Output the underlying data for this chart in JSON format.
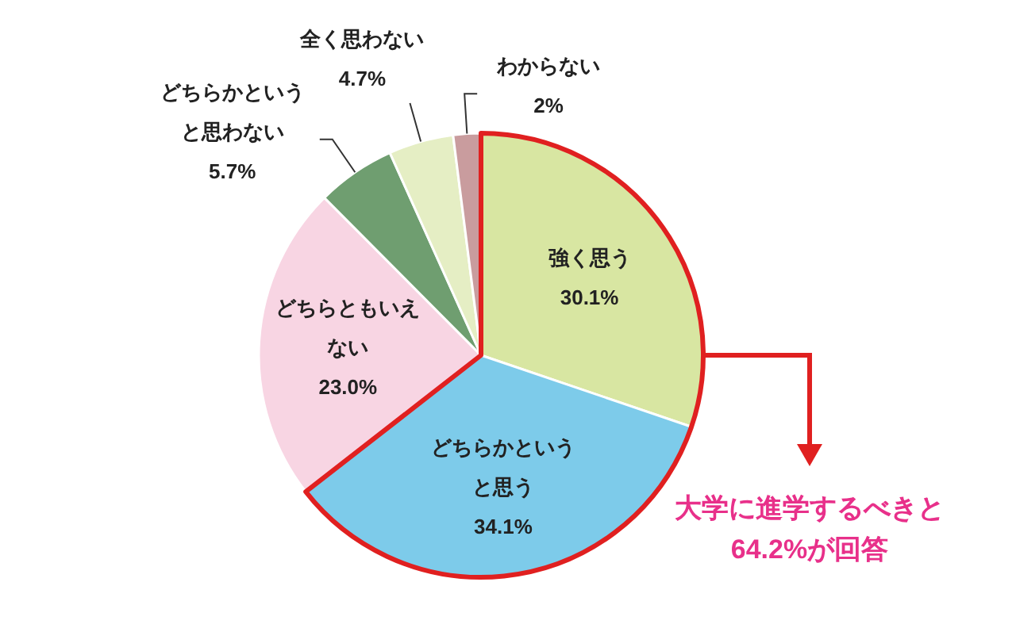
{
  "chart_data": {
    "type": "pie",
    "categories": [
      "強く思う",
      "どちらかというと思う",
      "どちらともいえない",
      "どちらかというと思わない",
      "全く思わない",
      "わからない"
    ],
    "values": [
      30.1,
      34.1,
      23.0,
      5.7,
      4.7,
      2
    ],
    "colors": [
      "#d8e6a2",
      "#7dcbea",
      "#f8d5e3",
      "#6f9e70",
      "#e5eec4",
      "#c99c9e"
    ],
    "value_labels": [
      "30.1%",
      "34.1%",
      "23.0%",
      "5.7%",
      "4.7%",
      "2%"
    ],
    "annotations": [
      "大学に進学するべきと64.2%が回答"
    ]
  }
}
